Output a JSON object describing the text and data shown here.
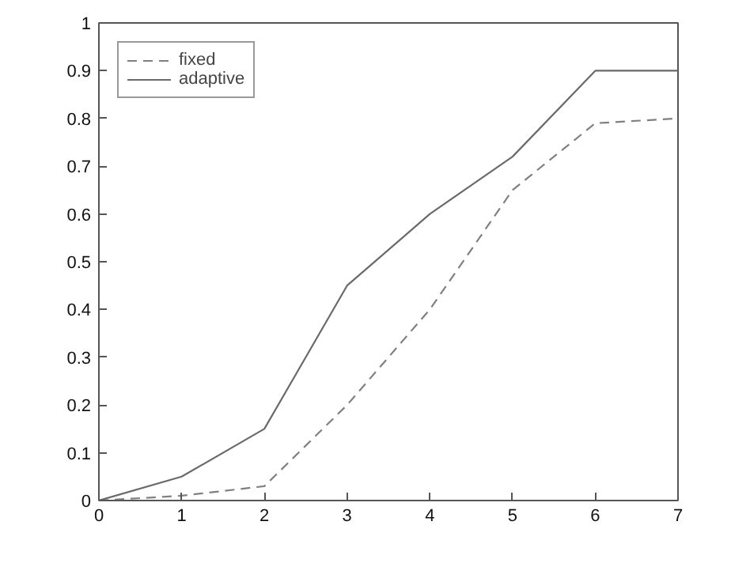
{
  "chart_data": {
    "type": "line",
    "x": [
      0,
      1,
      2,
      3,
      4,
      5,
      6,
      7
    ],
    "series": [
      {
        "name": "fixed",
        "color": "#808080",
        "line_style": "dashed",
        "values": [
          0,
          0.01,
          0.03,
          0.2,
          0.4,
          0.65,
          0.79,
          0.8
        ]
      },
      {
        "name": "adaptive",
        "color": "#6a6a6a",
        "line_style": "solid",
        "values": [
          0,
          0.05,
          0.15,
          0.45,
          0.6,
          0.72,
          0.9,
          0.9
        ]
      }
    ],
    "xlim": [
      0,
      7
    ],
    "ylim": [
      0,
      1
    ],
    "xticks": [
      0,
      1,
      2,
      3,
      4,
      5,
      6,
      7
    ],
    "yticks": [
      0,
      0.1,
      0.2,
      0.3,
      0.4,
      0.5,
      0.6,
      0.7,
      0.8,
      0.9,
      1
    ],
    "grid": false,
    "legend": "top left",
    "marker": "none"
  }
}
